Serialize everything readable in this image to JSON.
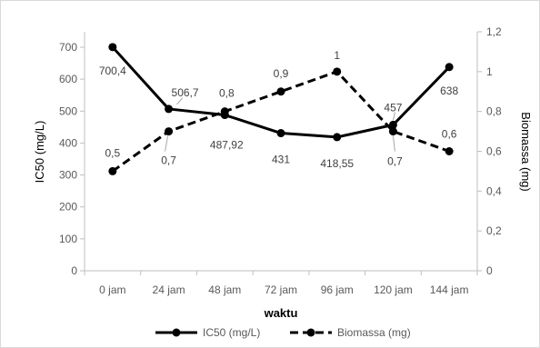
{
  "chart_data": {
    "type": "line",
    "categories": [
      "0 jam",
      "24 jam",
      "48 jam",
      "72 jam",
      "96 jam",
      "120 jam",
      "144 jam"
    ],
    "xlabel": "waktu",
    "ylabel": "IC50 (mg/L)",
    "y2label": "Biomassa (mg)",
    "ylim": [
      0,
      700
    ],
    "yticks": [
      "0",
      "100",
      "200",
      "300",
      "400",
      "500",
      "600",
      "700"
    ],
    "y2lim": [
      0,
      1.2
    ],
    "y2ticks": [
      "0",
      "0,2",
      "0,4",
      "0,6",
      "0,8",
      "1",
      "1,2"
    ],
    "grid": false,
    "legend_position": "bottom",
    "series": [
      {
        "name": "IC50 (mg/L)",
        "axis": "left",
        "style": "solid",
        "color": "#000000",
        "values": [
          700.4,
          506.7,
          487.92,
          431,
          418.55,
          457,
          638
        ],
        "labels": [
          "700,4",
          "506,7",
          "487,92",
          "431",
          "418,55",
          "457",
          "638"
        ]
      },
      {
        "name": "Biomassa (mg)",
        "axis": "right",
        "style": "dashed",
        "color": "#000000",
        "values": [
          0.5,
          0.7,
          0.8,
          0.9,
          1.0,
          0.7,
          0.6
        ],
        "labels": [
          "0,5",
          "0,7",
          "0,8",
          "0,9",
          "1",
          "0,7",
          "0,6"
        ]
      }
    ]
  }
}
